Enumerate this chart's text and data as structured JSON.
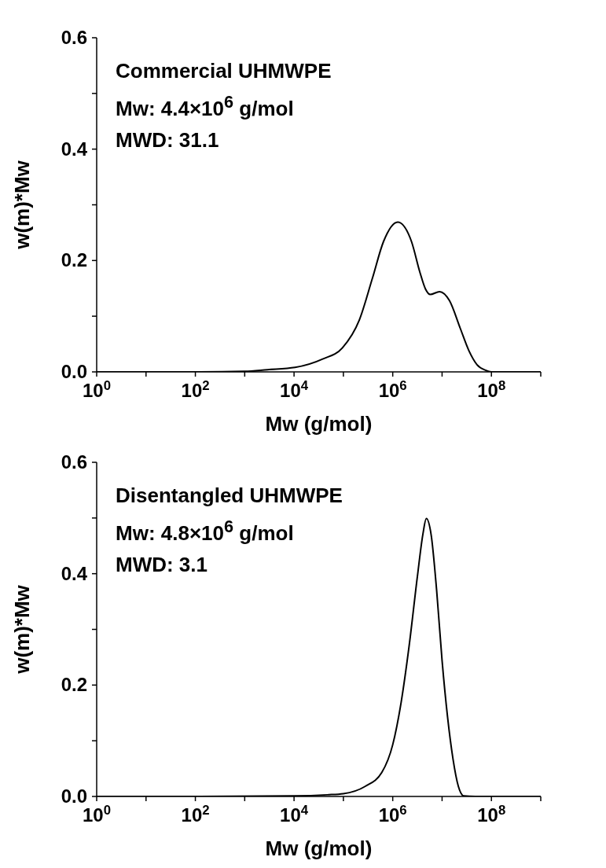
{
  "chart_data": [
    {
      "type": "line",
      "xlabel": "Mw (g/mol)",
      "ylabel": "w(m)*Mw",
      "annotations": [
        "Commercial UHMWPE",
        "Mw: 4.4×10$^{6}$ g/mol",
        "MWD: 31.1"
      ],
      "log": "x",
      "xlim": [
        1,
        1000000000
      ],
      "ylim": [
        0,
        0.6
      ],
      "xticks": [
        {
          "value": 1,
          "label": "10$^{0}$"
        },
        {
          "value": 10,
          "label": null
        },
        {
          "value": 100,
          "label": "10$^{2}$"
        },
        {
          "value": 1000,
          "label": null
        },
        {
          "value": 10000,
          "label": "10$^{4}$"
        },
        {
          "value": 100000,
          "label": null
        },
        {
          "value": 1000000,
          "label": "10$^{6}$"
        },
        {
          "value": 10000000,
          "label": null
        },
        {
          "value": 100000000,
          "label": "10$^{8}$"
        },
        {
          "value": 1000000000,
          "label": null
        }
      ],
      "yticks": [
        {
          "value": 0,
          "label": "0.0"
        },
        {
          "value": 0.1,
          "label": null
        },
        {
          "value": 0.2,
          "label": "0.2"
        },
        {
          "value": 0.3,
          "label": null
        },
        {
          "value": 0.4,
          "label": "0.4"
        },
        {
          "value": 0.5,
          "label": null
        },
        {
          "value": 0.6,
          "label": "0.6"
        }
      ],
      "x": [
        1,
        100,
        1000,
        2900,
        10500,
        38000,
        95000,
        210000,
        390000,
        650000,
        1260000,
        2400000,
        3550000,
        4600000,
        5750000,
        8900000,
        14100000,
        23400000,
        35000000,
        51000000,
        76000000,
        100000000,
        1000000000
      ],
      "series": [
        {
          "color": "#000000",
          "values": [
            0,
            0,
            0.001,
            0.004,
            0.008,
            0.023,
            0.043,
            0.093,
            0.169,
            0.234,
            0.269,
            0.234,
            0.179,
            0.149,
            0.139,
            0.144,
            0.128,
            0.078,
            0.038,
            0.013,
            0.003,
            0,
            0
          ]
        }
      ]
    },
    {
      "type": "line",
      "xlabel": "Mw (g/mol)",
      "ylabel": "w(m)*Mw",
      "annotations": [
        "Disentangled UHMWPE",
        "Mw: 4.8×10$^{6}$ g/mol",
        "MWD: 3.1"
      ],
      "log": "x",
      "xlim": [
        1,
        1000000000
      ],
      "ylim": [
        0,
        0.6
      ],
      "xticks": [
        {
          "value": 1,
          "label": "10$^{0}$"
        },
        {
          "value": 10,
          "label": null
        },
        {
          "value": 100,
          "label": "10$^{2}$"
        },
        {
          "value": 1000,
          "label": null
        },
        {
          "value": 10000,
          "label": "10$^{4}$"
        },
        {
          "value": 100000,
          "label": null
        },
        {
          "value": 1000000,
          "label": "10$^{6}$"
        },
        {
          "value": 10000000,
          "label": null
        },
        {
          "value": 100000000,
          "label": "10$^{8}$"
        },
        {
          "value": 1000000000,
          "label": null
        }
      ],
      "yticks": [
        {
          "value": 0,
          "label": "0.0"
        },
        {
          "value": 0.1,
          "label": null
        },
        {
          "value": 0.2,
          "label": "0.2"
        },
        {
          "value": 0.3,
          "label": null
        },
        {
          "value": 0.4,
          "label": "0.4"
        },
        {
          "value": 0.5,
          "label": null
        },
        {
          "value": 0.6,
          "label": "0.6"
        }
      ],
      "x": [
        1,
        100,
        10000,
        47000,
        100000,
        275000,
        600000,
        1000000,
        1480000,
        2140000,
        3160000,
        4070000,
        4800000,
        6000000,
        7760000,
        10000000,
        12900000,
        16600000,
        21400000,
        27500000,
        47000000,
        1000000000
      ],
      "series": [
        {
          "color": "#000000",
          "values": [
            0,
            0,
            0.001,
            0.003,
            0.005,
            0.018,
            0.043,
            0.093,
            0.169,
            0.269,
            0.395,
            0.47,
            0.499,
            0.47,
            0.37,
            0.244,
            0.143,
            0.068,
            0.018,
            0.001,
            0,
            0
          ]
        }
      ]
    }
  ]
}
